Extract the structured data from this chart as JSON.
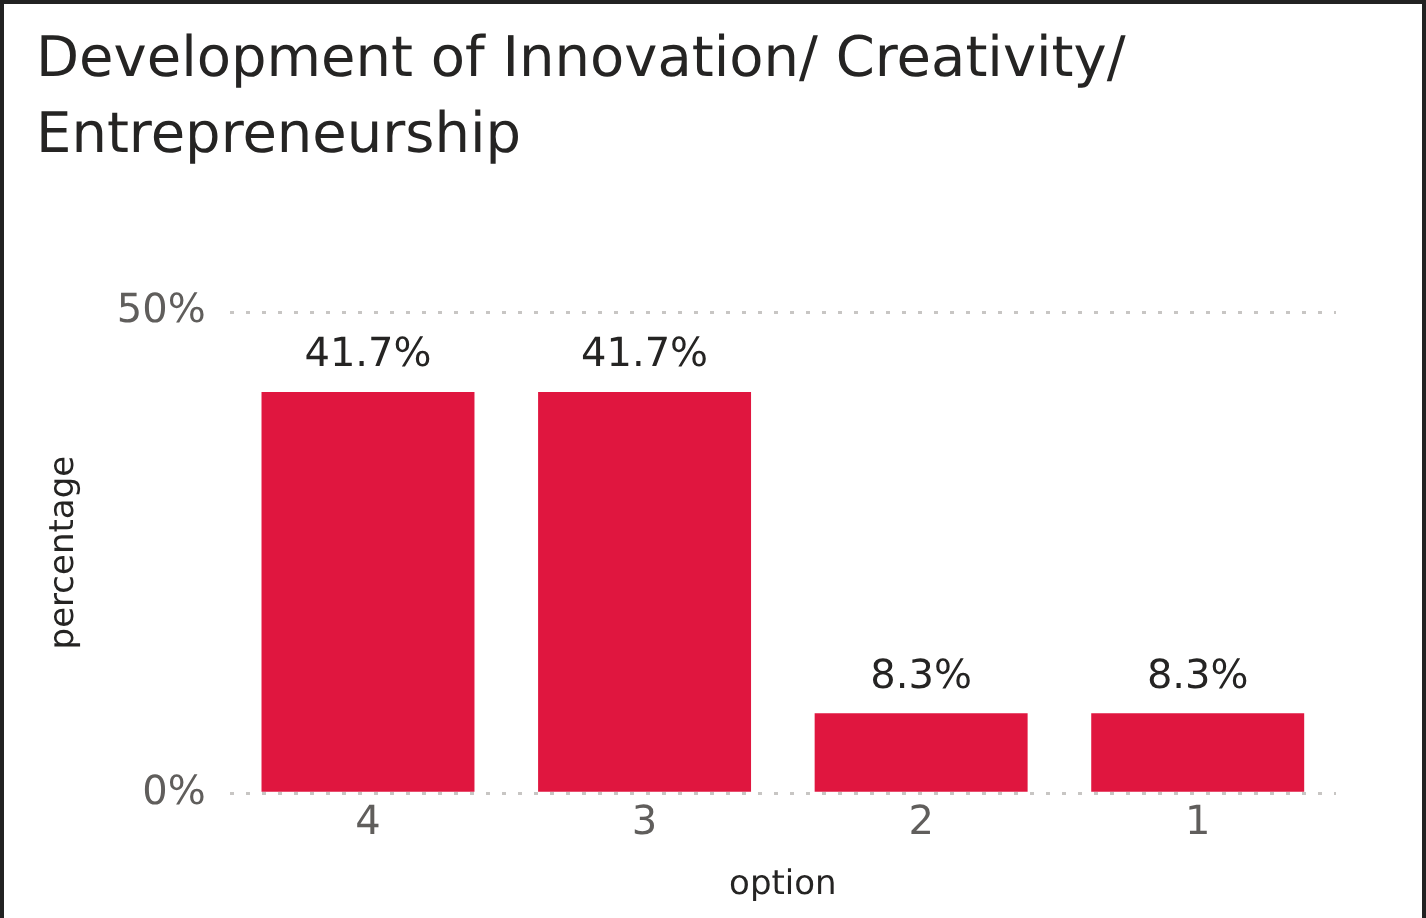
{
  "chart_data": {
    "type": "bar",
    "title": "Development of Innovation/ Creativity/ Entrepreneurship",
    "xlabel": "option",
    "ylabel": "percentage",
    "categories": [
      "4",
      "3",
      "2",
      "1"
    ],
    "values": [
      41.7,
      41.7,
      8.3,
      8.3
    ],
    "value_labels": [
      "41.7%",
      "41.7%",
      "8.3%",
      "8.3%"
    ],
    "color": "#e0163f",
    "ylim": [
      0,
      50
    ],
    "yticks": [
      {
        "value": 0,
        "label": "0%"
      },
      {
        "value": 50,
        "label": "50%"
      }
    ],
    "grid": "y",
    "legend": false
  }
}
